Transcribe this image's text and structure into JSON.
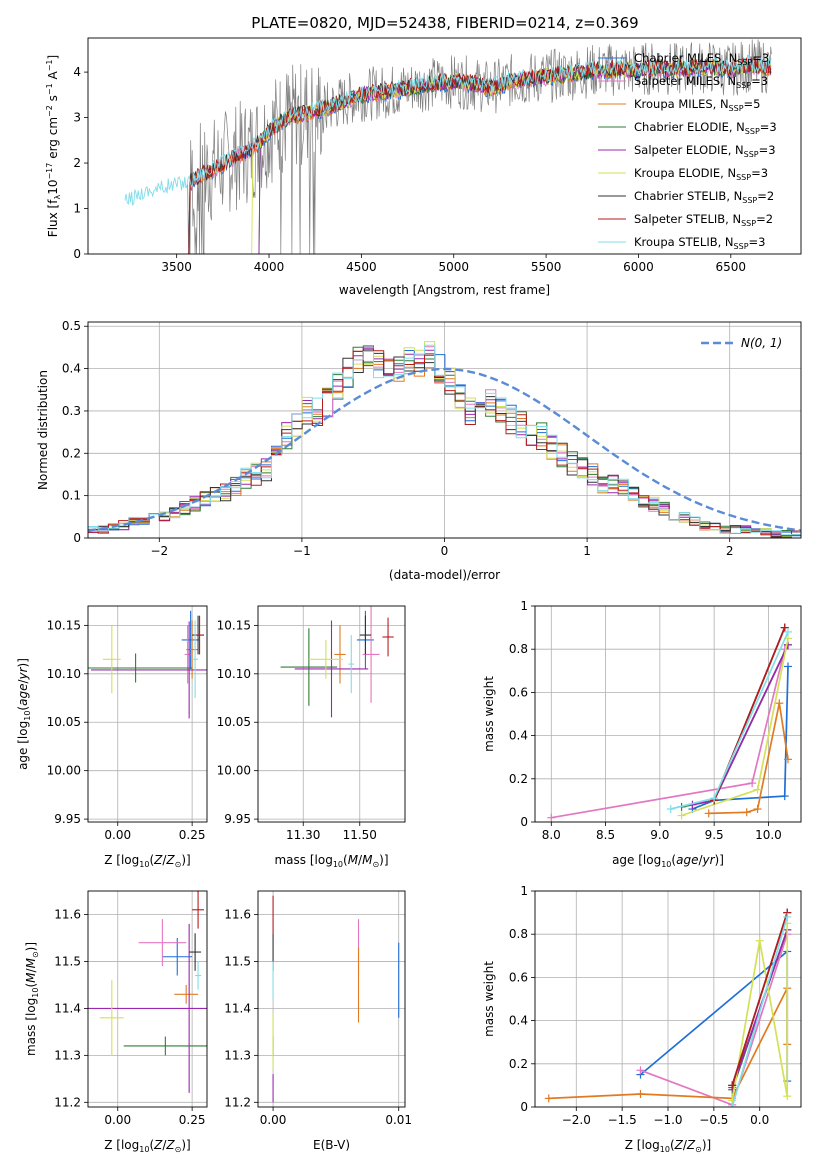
{
  "figure": {
    "title": "PLATE=0820, MJD=52438, FIBERID=0214, z=0.369"
  },
  "colors": {
    "chabrier_miles": "#1f6fd8",
    "salpeter_miles": "#e377c2",
    "kroupa_miles": "#e07b22",
    "chabrier_elodie": "#2e7d32",
    "salpeter_elodie": "#9c27b0",
    "kroupa_elodie": "#d4e157",
    "chabrier_stelib": "#333333",
    "salpeter_stelib": "#b71c1c",
    "kroupa_stelib": "#80deea",
    "data_spectrum": "#808080",
    "normal_curve": "#5b8bd6",
    "grid": "#b0b0b0"
  },
  "chart_data": [
    {
      "id": "spectrum",
      "type": "line",
      "xlabel": "wavelength [Angstrom, rest frame]",
      "ylabel": "Flux [f",
      "xlim": [
        3020,
        6880
      ],
      "ylim": [
        0,
        4.75
      ],
      "xticks": [
        3500,
        4000,
        4500,
        5000,
        5500,
        6000,
        6500
      ],
      "yticks": [
        0,
        1,
        2,
        3,
        4
      ],
      "grid": false,
      "legend_position": "top-right",
      "legend": [
        {
          "label": "Chabrier MILES, N",
          "sub": "SSP",
          "suffix": "=3",
          "color_key": "chabrier_miles"
        },
        {
          "label": "Salpeter MILES, N",
          "sub": "SSP",
          "suffix": "=3",
          "color_key": "salpeter_miles"
        },
        {
          "label": "Kroupa MILES, N",
          "sub": "SSP",
          "suffix": "=5",
          "color_key": "kroupa_miles"
        },
        {
          "label": "Chabrier ELODIE, N",
          "sub": "SSP",
          "suffix": "=3",
          "color_key": "chabrier_elodie"
        },
        {
          "label": "Salpeter ELODIE, N",
          "sub": "SSP",
          "suffix": "=3",
          "color_key": "salpeter_elodie"
        },
        {
          "label": "Kroupa ELODIE, N",
          "sub": "SSP",
          "suffix": "=3",
          "color_key": "kroupa_elodie"
        },
        {
          "label": "Chabrier STELIB, N",
          "sub": "SSP",
          "suffix": "=2",
          "color_key": "chabrier_stelib"
        },
        {
          "label": "Salpeter STELIB, N",
          "sub": "SSP",
          "suffix": "=2",
          "color_key": "salpeter_stelib"
        },
        {
          "label": "Kroupa STELIB, N",
          "sub": "SSP",
          "suffix": "=3",
          "color_key": "kroupa_stelib"
        }
      ],
      "model_continuum": {
        "x": [
          3220,
          3300,
          3400,
          3500,
          3560,
          3620,
          3700,
          3800,
          3900,
          3960,
          4000,
          4100,
          4200,
          4300,
          4400,
          4500,
          4600,
          4700,
          4800,
          4900,
          5000,
          5100,
          5200,
          5300,
          5400,
          5500,
          5600,
          5700,
          5800,
          5900,
          6000,
          6100,
          6200,
          6300,
          6400,
          6500,
          6600,
          6720
        ],
        "y": [
          1.1,
          1.3,
          1.4,
          1.5,
          1.55,
          1.7,
          1.85,
          2.1,
          2.3,
          2.5,
          2.7,
          3.0,
          3.1,
          3.2,
          3.35,
          3.5,
          3.55,
          3.6,
          3.7,
          3.75,
          3.8,
          3.75,
          3.65,
          3.8,
          3.85,
          3.9,
          3.95,
          4.0,
          4.05,
          4.05,
          4.05,
          4.1,
          4.05,
          4.1,
          4.1,
          4.05,
          4.15,
          4.1
        ]
      },
      "data_envelope": {
        "x_start": 3560,
        "x_end": 6720,
        "noise_amplitude": 0.6
      }
    },
    {
      "id": "residual_hist",
      "type": "bar",
      "xlabel": "(data-model)/error",
      "ylabel": "Normed distribution",
      "xlim": [
        -2.5,
        2.5
      ],
      "ylim": [
        0,
        0.51
      ],
      "xticks": [
        -2,
        -1,
        0,
        1,
        2
      ],
      "yticks": [
        0.0,
        0.1,
        0.2,
        0.3,
        0.4,
        0.5
      ],
      "grid": true,
      "legend_position": "top-right",
      "legend_label": "N(0, 1)",
      "bin_width": 0.1,
      "bin_start": -2.5,
      "hist_base": [
        0.02,
        0.02,
        0.025,
        0.03,
        0.04,
        0.045,
        0.05,
        0.05,
        0.06,
        0.07,
        0.08,
        0.09,
        0.1,
        0.11,
        0.12,
        0.14,
        0.15,
        0.16,
        0.2,
        0.24,
        0.27,
        0.3,
        0.3,
        0.32,
        0.36,
        0.39,
        0.42,
        0.42,
        0.41,
        0.39,
        0.4,
        0.42,
        0.41,
        0.43,
        0.4,
        0.37,
        0.33,
        0.3,
        0.33,
        0.32,
        0.3,
        0.28,
        0.27,
        0.25,
        0.24,
        0.21,
        0.2,
        0.18,
        0.17,
        0.15,
        0.13,
        0.13,
        0.12,
        0.1,
        0.09,
        0.08,
        0.07,
        0.05,
        0.05,
        0.04,
        0.03,
        0.03,
        0.02,
        0.02,
        0.02,
        0.015,
        0.015,
        0.01,
        0.01,
        0.01
      ],
      "normal_mean": 0,
      "normal_sigma": 1
    },
    {
      "id": "age_vs_Z",
      "type": "scatter",
      "xlabel": "Z [log",
      "ylabel": "age  [log",
      "xlim": [
        -0.1,
        0.3
      ],
      "ylim": [
        9.947,
        10.17
      ],
      "xticks": [
        0.0,
        0.25
      ],
      "xtick_labels": [
        "0.00",
        "0.25"
      ],
      "yticks": [
        9.95,
        10.0,
        10.05,
        10.1,
        10.15
      ],
      "yticklabels": [
        "9.95",
        "10.00",
        "10.05",
        "10.10",
        "10.15"
      ],
      "grid": true,
      "points": [
        {
          "model": "chabrier_miles",
          "x": 0.245,
          "xerr": 0.03,
          "y": 10.135,
          "yerr": 0.03
        },
        {
          "model": "salpeter_miles",
          "x": 0.235,
          "xerr": 0.01,
          "y": 10.12,
          "yerr": 0.03
        },
        {
          "model": "kroupa_miles",
          "x": 0.25,
          "xerr": 0.02,
          "y": 10.125,
          "yerr": 0.03
        },
        {
          "model": "chabrier_elodie",
          "x": 0.06,
          "xerr": 0.19,
          "y": 10.106,
          "yerr": 0.015
        },
        {
          "model": "salpeter_elodie",
          "x": 0.24,
          "xerr": 0.33,
          "y": 10.104,
          "yerr": 0.05
        },
        {
          "model": "kroupa_elodie",
          "x": -0.02,
          "xerr": 0.03,
          "y": 10.115,
          "yerr": 0.035
        },
        {
          "model": "chabrier_stelib",
          "x": 0.27,
          "xerr": 0.02,
          "y": 10.14,
          "yerr": 0.02
        },
        {
          "model": "salpeter_stelib",
          "x": 0.275,
          "xerr": 0.01,
          "y": 10.14,
          "yerr": 0.02
        },
        {
          "model": "kroupa_stelib",
          "x": 0.26,
          "xerr": 0.01,
          "y": 10.115,
          "yerr": 0.04
        }
      ]
    },
    {
      "id": "age_vs_mass",
      "type": "scatter",
      "xlabel": "mass [log",
      "ylabel": "",
      "xlim": [
        11.14,
        11.66
      ],
      "ylim": [
        9.947,
        10.17
      ],
      "xticks": [
        11.3,
        11.5
      ],
      "xtick_labels": [
        "11.30",
        "11.50"
      ],
      "yticks": [
        9.95,
        10.0,
        10.05,
        10.1,
        10.15
      ],
      "yticklabels": [
        "9.95",
        "10.00",
        "10.05",
        "10.10",
        "10.15"
      ],
      "grid": true,
      "points": [
        {
          "model": "chabrier_miles",
          "x": 11.52,
          "xerr": 0.03,
          "y": 10.135,
          "yerr": 0.03
        },
        {
          "model": "salpeter_miles",
          "x": 11.54,
          "xerr": 0.03,
          "y": 10.12,
          "yerr": 0.05
        },
        {
          "model": "kroupa_miles",
          "x": 11.43,
          "xerr": 0.02,
          "y": 10.12,
          "yerr": 0.03
        },
        {
          "model": "chabrier_elodie",
          "x": 11.32,
          "xerr": 0.1,
          "y": 10.107,
          "yerr": 0.04
        },
        {
          "model": "salpeter_elodie",
          "x": 11.4,
          "xerr": 0.13,
          "y": 10.105,
          "yerr": 0.05
        },
        {
          "model": "kroupa_elodie",
          "x": 11.38,
          "xerr": 0.06,
          "y": 10.115,
          "yerr": 0.02
        },
        {
          "model": "chabrier_stelib",
          "x": 11.52,
          "xerr": 0.02,
          "y": 10.14,
          "yerr": 0.02
        },
        {
          "model": "salpeter_stelib",
          "x": 11.6,
          "xerr": 0.02,
          "y": 10.138,
          "yerr": 0.02
        },
        {
          "model": "kroupa_stelib",
          "x": 11.47,
          "xerr": 0.01,
          "y": 10.11,
          "yerr": 0.03
        }
      ]
    },
    {
      "id": "mass_weight_vs_age",
      "type": "line",
      "xlabel": "age  [log",
      "ylabel": "mass weight",
      "xlim": [
        7.85,
        10.3
      ],
      "ylim": [
        0,
        1.0
      ],
      "xticks": [
        8.0,
        8.5,
        9.0,
        9.5,
        10.0
      ],
      "xtick_labels": [
        "8.0",
        "8.5",
        "9.0",
        "9.5",
        "10.0"
      ],
      "yticks": [
        0.0,
        0.2,
        0.4,
        0.6,
        0.8,
        1.0
      ],
      "grid": true,
      "series": [
        {
          "model": "chabrier_miles",
          "x": [
            9.3,
            9.5,
            10.15,
            10.18
          ],
          "y": [
            0.06,
            0.1,
            0.12,
            0.72
          ]
        },
        {
          "model": "salpeter_miles",
          "x": [
            8.0,
            9.85,
            10.15,
            10.18
          ],
          "y": [
            0.02,
            0.18,
            0.8,
            0.82
          ]
        },
        {
          "model": "kroupa_miles",
          "x": [
            9.45,
            9.8,
            9.9,
            10.1,
            10.18
          ],
          "y": [
            0.04,
            0.045,
            0.06,
            0.55,
            0.29
          ]
        },
        {
          "model": "chabrier_elodie",
          "x": [
            9.2,
            9.5,
            10.18
          ],
          "y": [
            0.07,
            0.1,
            0.82
          ]
        },
        {
          "model": "salpeter_elodie",
          "x": [
            9.3,
            9.5,
            10.18
          ],
          "y": [
            0.08,
            0.1,
            0.82
          ]
        },
        {
          "model": "kroupa_elodie",
          "x": [
            9.2,
            9.9,
            10.18
          ],
          "y": [
            0.03,
            0.15,
            0.85
          ]
        },
        {
          "model": "chabrier_stelib",
          "x": [
            9.5,
            10.15
          ],
          "y": [
            0.1,
            0.9
          ]
        },
        {
          "model": "salpeter_stelib",
          "x": [
            9.5,
            10.15
          ],
          "y": [
            0.1,
            0.9
          ]
        },
        {
          "model": "kroupa_stelib",
          "x": [
            9.1,
            9.5,
            10.18
          ],
          "y": [
            0.06,
            0.11,
            0.88
          ]
        }
      ]
    },
    {
      "id": "mass_vs_Z",
      "type": "scatter",
      "xlabel": "Z [log",
      "ylabel": "mass [log",
      "xlim": [
        -0.1,
        0.3
      ],
      "ylim": [
        11.19,
        11.65
      ],
      "xticks": [
        0.0,
        0.25
      ],
      "xtick_labels": [
        "0.00",
        "0.25"
      ],
      "yticks": [
        11.2,
        11.3,
        11.4,
        11.5,
        11.6
      ],
      "yticklabels": [
        "11.2",
        "11.3",
        "11.4",
        "11.5",
        "11.6"
      ],
      "grid": true,
      "points": [
        {
          "model": "chabrier_miles",
          "x": 0.2,
          "xerr": 0.05,
          "y": 11.51,
          "yerr": 0.04
        },
        {
          "model": "salpeter_miles",
          "x": 0.15,
          "xerr": 0.08,
          "y": 11.54,
          "yerr": 0.05
        },
        {
          "model": "kroupa_miles",
          "x": 0.23,
          "xerr": 0.04,
          "y": 11.43,
          "yerr": 0.02
        },
        {
          "model": "chabrier_elodie",
          "x": 0.16,
          "xerr": 0.14,
          "y": 11.32,
          "yerr": 0.02
        },
        {
          "model": "salpeter_elodie",
          "x": 0.24,
          "xerr": 0.34,
          "y": 11.4,
          "yerr": 0.18
        },
        {
          "model": "kroupa_elodie",
          "x": -0.02,
          "xerr": 0.04,
          "y": 11.38,
          "yerr": 0.08
        },
        {
          "model": "chabrier_stelib",
          "x": 0.26,
          "xerr": 0.02,
          "y": 11.52,
          "yerr": 0.04
        },
        {
          "model": "salpeter_stelib",
          "x": 0.27,
          "xerr": 0.02,
          "y": 11.61,
          "yerr": 0.04
        },
        {
          "model": "kroupa_stelib",
          "x": 0.27,
          "xerr": 0.01,
          "y": 11.47,
          "yerr": 0.03
        }
      ]
    },
    {
      "id": "mass_vs_ebv",
      "type": "scatter",
      "xlabel": "E(B-V)",
      "ylabel": "",
      "xlim": [
        -0.0012,
        0.0105
      ],
      "ylim": [
        11.19,
        11.65
      ],
      "xticks": [
        0.0,
        0.01
      ],
      "xtick_labels": [
        "0.00",
        "0.01"
      ],
      "yticks": [
        11.2,
        11.3,
        11.4,
        11.5,
        11.6
      ],
      "yticklabels": [
        "11.2",
        "11.3",
        "11.4",
        "11.5",
        "11.6"
      ],
      "grid": true,
      "points": [
        {
          "model": "chabrier_miles",
          "x": 0.01,
          "xerr": 0,
          "y": 11.46,
          "yerr": 0.08
        },
        {
          "model": "salpeter_miles",
          "x": 0.0068,
          "xerr": 0,
          "y": 11.53,
          "yerr": 0.06
        },
        {
          "model": "kroupa_miles",
          "x": 0.0068,
          "xerr": 0,
          "y": 11.45,
          "yerr": 0.08
        },
        {
          "model": "chabrier_elodie",
          "x": 0.0,
          "xerr": 0,
          "y": 11.32,
          "yerr": 0.02
        },
        {
          "model": "salpeter_elodie",
          "x": 0.0,
          "xerr": 0,
          "y": 11.23,
          "yerr": 0.03
        },
        {
          "model": "kroupa_elodie",
          "x": 0.0,
          "xerr": 0,
          "y": 11.33,
          "yerr": 0.06
        },
        {
          "model": "chabrier_stelib",
          "x": 0.0,
          "xerr": 0,
          "y": 11.52,
          "yerr": 0.04
        },
        {
          "model": "salpeter_stelib",
          "x": 0.0,
          "xerr": 0,
          "y": 11.6,
          "yerr": 0.04
        },
        {
          "model": "kroupa_stelib",
          "x": 0.0,
          "xerr": 0,
          "y": 11.46,
          "yerr": 0.04
        }
      ]
    },
    {
      "id": "mass_weight_vs_Z",
      "type": "line",
      "xlabel": "Z [log",
      "ylabel": "mass weight",
      "xlim": [
        -2.45,
        0.45
      ],
      "ylim": [
        0,
        1.0
      ],
      "xticks": [
        -2.0,
        -1.5,
        -1.0,
        -0.5,
        0.0
      ],
      "xtick_labels": [
        "−2.0",
        "−1.5",
        "−1.0",
        "−0.5",
        "0.0"
      ],
      "yticks": [
        0.0,
        0.2,
        0.4,
        0.6,
        0.8,
        1.0
      ],
      "grid": true,
      "series": [
        {
          "model": "chabrier_miles",
          "x": [
            -1.3,
            0.3,
            0.3
          ],
          "y": [
            0.15,
            0.72,
            0.12
          ]
        },
        {
          "model": "salpeter_miles",
          "x": [
            -1.3,
            -0.3,
            0.3
          ],
          "y": [
            0.17,
            0.01,
            0.8
          ]
        },
        {
          "model": "kroupa_miles",
          "x": [
            -2.3,
            -1.3,
            -0.3,
            0.3,
            0.3
          ],
          "y": [
            0.04,
            0.06,
            0.04,
            0.55,
            0.29
          ]
        },
        {
          "model": "chabrier_elodie",
          "x": [
            -0.3,
            0.3
          ],
          "y": [
            0.08,
            0.82
          ]
        },
        {
          "model": "salpeter_elodie",
          "x": [
            -0.3,
            0.3
          ],
          "y": [
            0.09,
            0.82
          ]
        },
        {
          "model": "kroupa_elodie",
          "x": [
            -0.3,
            0.0,
            0.3,
            0.3
          ],
          "y": [
            0.03,
            0.77,
            0.05,
            0.85
          ]
        },
        {
          "model": "chabrier_stelib",
          "x": [
            -0.3,
            0.3
          ],
          "y": [
            0.1,
            0.9
          ]
        },
        {
          "model": "salpeter_stelib",
          "x": [
            -0.3,
            0.3
          ],
          "y": [
            0.1,
            0.9
          ]
        },
        {
          "model": "kroupa_stelib",
          "x": [
            -0.3,
            0.3
          ],
          "y": [
            0.0,
            0.88
          ]
        }
      ]
    }
  ]
}
